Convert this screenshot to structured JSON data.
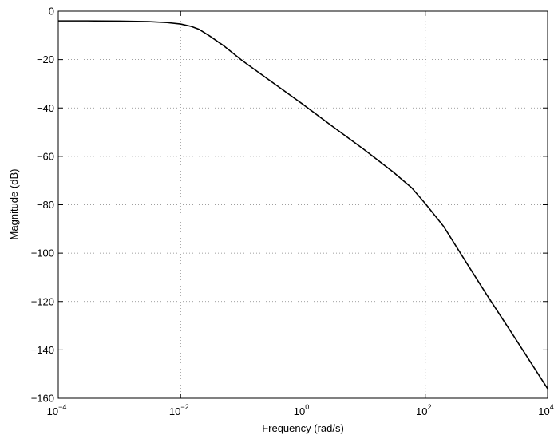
{
  "colors": {
    "line": "#000000",
    "grid": "#808080",
    "axes": "#000000",
    "background": "#ffffff"
  },
  "chart_data": {
    "type": "line",
    "xlabel": "Frequency (rad/s)",
    "ylabel": "Magnitude (dB)",
    "x_scale": "log",
    "xlim": [
      0.0001,
      10000
    ],
    "ylim": [
      -160,
      0
    ],
    "grid": true,
    "x_ticks": [
      {
        "value": 0.0001,
        "base": "10",
        "exp": "−4"
      },
      {
        "value": 0.01,
        "base": "10",
        "exp": "−2"
      },
      {
        "value": 1,
        "base": "10",
        "exp": "0"
      },
      {
        "value": 100,
        "base": "10",
        "exp": "2"
      },
      {
        "value": 10000,
        "base": "10",
        "exp": "4"
      }
    ],
    "y_ticks": [
      {
        "value": 0,
        "label": "0"
      },
      {
        "value": -20,
        "label": "−20"
      },
      {
        "value": -40,
        "label": "−40"
      },
      {
        "value": -60,
        "label": "−60"
      },
      {
        "value": -80,
        "label": "−80"
      },
      {
        "value": -100,
        "label": "−100"
      },
      {
        "value": -120,
        "label": "−120"
      },
      {
        "value": -140,
        "label": "−140"
      },
      {
        "value": -160,
        "label": "−160"
      }
    ],
    "series": [
      {
        "x": [
          0.0001,
          0.0003,
          0.001,
          0.003,
          0.006,
          0.01,
          0.015,
          0.02,
          0.03,
          0.05,
          0.1,
          0.3,
          1,
          3,
          10,
          30,
          60,
          100,
          200,
          500,
          1000,
          3000,
          10000
        ],
        "y": [
          -4,
          -4,
          -4.1,
          -4.3,
          -4.7,
          -5.3,
          -6.3,
          -7.5,
          -10.3,
          -14.2,
          -20.3,
          -29,
          -38.5,
          -47.5,
          -57.2,
          -66.5,
          -73,
          -79.5,
          -89,
          -105,
          -117,
          -135.5,
          -156
        ]
      }
    ]
  }
}
